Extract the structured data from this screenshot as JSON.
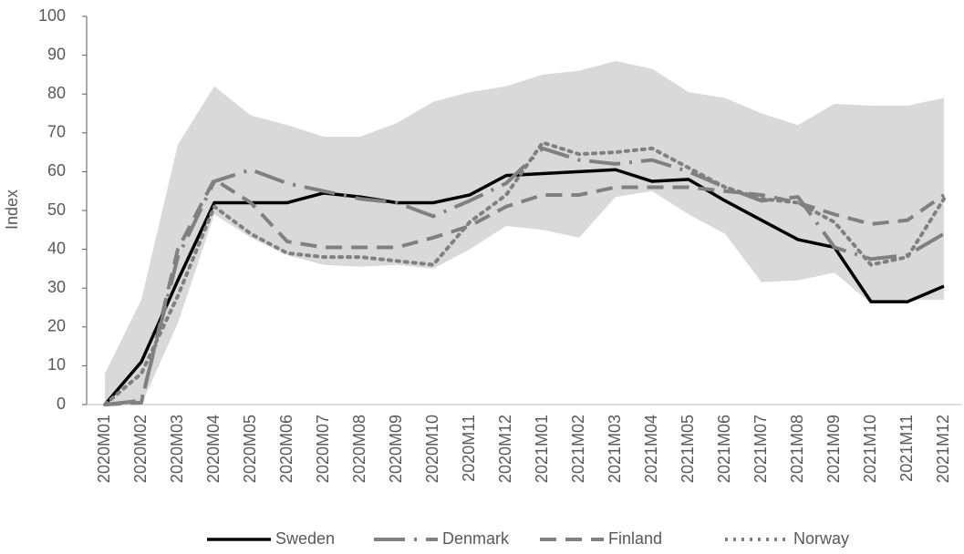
{
  "chart_data": {
    "type": "line",
    "y_label": "Index",
    "categories": [
      "2020M01",
      "2020M02",
      "2020M03",
      "2020M04",
      "2020M05",
      "2020M06",
      "2020M07",
      "2020M08",
      "2020M09",
      "2020M10",
      "2020M11",
      "2020M12",
      "2021M01",
      "2021M02",
      "2021M03",
      "2021M04",
      "2021M05",
      "2021M06",
      "2021M07",
      "2021M08",
      "2021M09",
      "2021M10",
      "2021M11",
      "2021M12"
    ],
    "ylim": [
      0,
      100
    ],
    "yticks": [
      0,
      10,
      20,
      30,
      40,
      50,
      60,
      70,
      80,
      90,
      100
    ],
    "band": {
      "color": "#d9d9d9",
      "upper": [
        8,
        27,
        67,
        82,
        74.5,
        72,
        69,
        69,
        72.5,
        78,
        80.5,
        82,
        85,
        86,
        88.5,
        86.5,
        80.5,
        79,
        75,
        72,
        77.5,
        77,
        77,
        79
      ],
      "lower": [
        0,
        0,
        21,
        49,
        43,
        38.5,
        36,
        35.5,
        36,
        35,
        40,
        46,
        45,
        43,
        53.5,
        55,
        49,
        44,
        31.5,
        32,
        34,
        26,
        27,
        27
      ]
    },
    "series": [
      {
        "name": "Sweden",
        "color": "#000000",
        "dash": "none",
        "values": [
          0,
          11,
          32,
          52,
          52,
          52,
          54.5,
          53.5,
          52,
          52,
          54,
          59,
          59.5,
          60,
          60.5,
          57.5,
          58,
          52.5,
          47.5,
          42.5,
          40.5,
          26.5,
          26.5,
          30.5
        ]
      },
      {
        "name": "Denmark",
        "color": "#808080",
        "dash": "34 10 3 10",
        "values": [
          0,
          1,
          38,
          57.5,
          60.5,
          57,
          55,
          53,
          52,
          48.5,
          52.5,
          57,
          66,
          63,
          62,
          63,
          60,
          56,
          52.5,
          53.5,
          40.5,
          37.5,
          38.5,
          44
        ]
      },
      {
        "name": "Finland",
        "color": "#808080",
        "dash": "18 10",
        "values": [
          0,
          0.5,
          40,
          58,
          52,
          42,
          40.5,
          40.5,
          40.5,
          43,
          46,
          51,
          54,
          54,
          56,
          56,
          56,
          55,
          54,
          52,
          49,
          46.5,
          47.5,
          54
        ]
      },
      {
        "name": "Norway",
        "color": "#808080",
        "dash": "3 6",
        "values": [
          0,
          8,
          28,
          51,
          44,
          39,
          38,
          38,
          37,
          36,
          47,
          54,
          67.5,
          64.5,
          65,
          66,
          61,
          56,
          53,
          52,
          47,
          36,
          38,
          53
        ]
      }
    ]
  }
}
